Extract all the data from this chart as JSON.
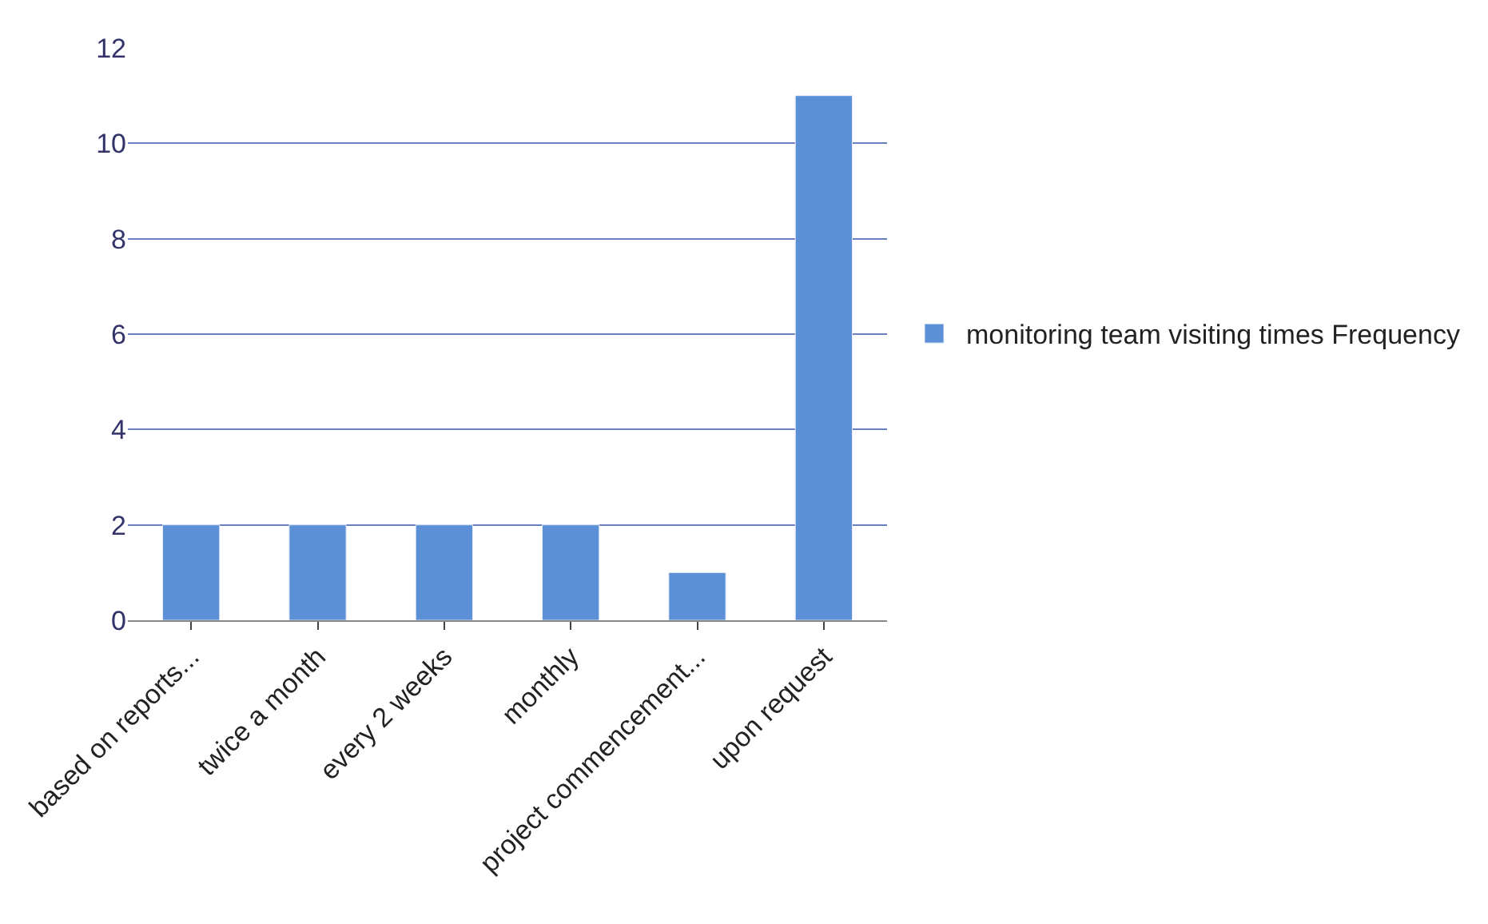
{
  "chart_data": {
    "type": "bar",
    "categories": [
      "based on reports...",
      "twice a month",
      "every 2 weeks",
      "monthly",
      "project commencement...",
      "upon request"
    ],
    "series": [
      {
        "name": "monitoring team visiting times Frequency",
        "color": "#5b8fd6",
        "values": [
          2,
          2,
          2,
          2,
          1,
          11
        ]
      }
    ],
    "ylim": [
      0,
      12
    ],
    "yticks": [
      0,
      2,
      4,
      6,
      8,
      10,
      12
    ],
    "grid": "y",
    "legend": "right"
  }
}
